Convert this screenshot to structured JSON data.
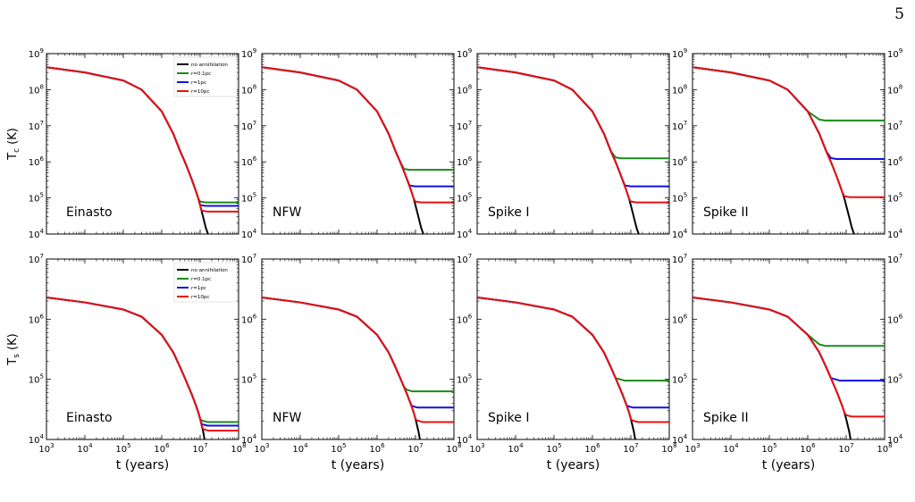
{
  "page_number": "5",
  "chart_data": {
    "type": "line",
    "x_scale": "log",
    "y_scale": "log",
    "xlim": [
      1000,
      100000000
    ],
    "x_ticks": [
      {
        "value": 1000,
        "base": "10",
        "exp": "3"
      },
      {
        "value": 10000,
        "base": "10",
        "exp": "4"
      },
      {
        "value": 100000,
        "base": "10",
        "exp": "5"
      },
      {
        "value": 1000000,
        "base": "10",
        "exp": "6"
      },
      {
        "value": 10000000,
        "base": "10",
        "exp": "7"
      },
      {
        "value": 100000000,
        "base": "10",
        "exp": "8"
      }
    ],
    "xlabel": "t (years)",
    "series_styles": [
      {
        "name": "no annihilation",
        "color": "#000000"
      },
      {
        "name": "r=0.1pc",
        "color": "#1a8a1a"
      },
      {
        "name": "r=1pc",
        "color": "#1010e0"
      },
      {
        "name": "r=10pc",
        "color": "#e81010"
      }
    ],
    "legend": {
      "placement": "top-right",
      "entries": [
        "no annihilation",
        "r=0.1pc",
        "r=1pc",
        "r=10pc"
      ]
    },
    "rows": [
      {
        "quantity": "Tc",
        "ylabel": "T",
        "ylabel_sub": "c",
        "ylabel_unit": " (K)",
        "ylim": [
          10000,
          1000000000
        ],
        "y_ticks": [
          {
            "value": 10000,
            "base": "10",
            "exp": "4"
          },
          {
            "value": 100000,
            "base": "10",
            "exp": "5"
          },
          {
            "value": 1000000,
            "base": "10",
            "exp": "6"
          },
          {
            "value": 10000000,
            "base": "10",
            "exp": "7"
          },
          {
            "value": 100000000,
            "base": "10",
            "exp": "8"
          },
          {
            "value": 1000000000,
            "base": "10",
            "exp": "9"
          }
        ],
        "cooling_curve": [
          [
            1000,
            420000000
          ],
          [
            10000,
            300000000
          ],
          [
            100000,
            180000000
          ],
          [
            300000,
            100000000
          ],
          [
            1000000,
            25000000
          ],
          [
            2000000,
            6000000
          ],
          [
            3000000,
            2000000
          ],
          [
            4000000,
            1000000
          ],
          [
            5000000,
            550000
          ],
          [
            6000000,
            330000
          ],
          [
            7000000,
            210000
          ],
          [
            8000000,
            140000
          ],
          [
            9000000,
            95000
          ],
          [
            10000000,
            62000
          ],
          [
            11000000,
            42000
          ],
          [
            12000000,
            29000
          ],
          [
            14000000,
            15000
          ],
          [
            16000000,
            10000
          ]
        ],
        "panels": [
          {
            "label": "Einasto",
            "show_legend": true,
            "plateaus": [
              {
                "name": "r=0.1pc",
                "value": 75000
              },
              {
                "name": "r=1pc",
                "value": 60000
              },
              {
                "name": "r=10pc",
                "value": 42000
              }
            ],
            "nofit_end": 16000000
          },
          {
            "label": "NFW",
            "show_legend": false,
            "plateaus": [
              {
                "name": "r=0.1pc",
                "value": 600000
              },
              {
                "name": "r=1pc",
                "value": 210000
              },
              {
                "name": "r=10pc",
                "value": 75000
              }
            ],
            "nofit_end": 16000000
          },
          {
            "label": "Spike I",
            "show_legend": false,
            "plateaus": [
              {
                "name": "r=0.1pc",
                "value": 1250000
              },
              {
                "name": "r=1pc",
                "value": 210000
              },
              {
                "name": "r=10pc",
                "value": 75000
              }
            ],
            "nofit_end": 16000000
          },
          {
            "label": "Spike II",
            "show_legend": false,
            "plateaus": [
              {
                "name": "r=0.1pc",
                "value": 14000000
              },
              {
                "name": "r=1pc",
                "value": 1200000
              },
              {
                "name": "r=10pc",
                "value": 105000
              }
            ],
            "nofit_end": 16000000
          }
        ]
      },
      {
        "quantity": "Ts",
        "ylabel": "T",
        "ylabel_sub": "s",
        "ylabel_unit": " (K)",
        "ylim": [
          10000,
          10000000
        ],
        "y_ticks": [
          {
            "value": 10000,
            "base": "10",
            "exp": "4"
          },
          {
            "value": 100000,
            "base": "10",
            "exp": "5"
          },
          {
            "value": 1000000,
            "base": "10",
            "exp": "6"
          },
          {
            "value": 10000000,
            "base": "10",
            "exp": "7"
          }
        ],
        "cooling_curve": [
          [
            1000,
            2300000
          ],
          [
            10000,
            1900000
          ],
          [
            100000,
            1450000
          ],
          [
            300000,
            1100000
          ],
          [
            1000000,
            550000
          ],
          [
            2000000,
            280000
          ],
          [
            3000000,
            160000
          ],
          [
            4000000,
            105000
          ],
          [
            5000000,
            75000
          ],
          [
            6000000,
            57000
          ],
          [
            7000000,
            44000
          ],
          [
            8000000,
            35000
          ],
          [
            9000000,
            28000
          ],
          [
            10000000,
            22000
          ],
          [
            11000000,
            17000
          ],
          [
            12000000,
            13500
          ],
          [
            13000000,
            10000
          ]
        ],
        "panels": [
          {
            "label": "Einasto",
            "show_legend": true,
            "plateaus": [
              {
                "name": "r=0.1pc",
                "value": 19500
              },
              {
                "name": "r=1pc",
                "value": 17000
              },
              {
                "name": "r=10pc",
                "value": 14000
              }
            ],
            "nofit_end": 13000000
          },
          {
            "label": "NFW",
            "show_legend": false,
            "plateaus": [
              {
                "name": "r=0.1pc",
                "value": 63000
              },
              {
                "name": "r=1pc",
                "value": 34000
              },
              {
                "name": "r=10pc",
                "value": 19500
              }
            ],
            "nofit_end": 13000000
          },
          {
            "label": "Spike I",
            "show_legend": false,
            "plateaus": [
              {
                "name": "r=0.1pc",
                "value": 95000
              },
              {
                "name": "r=1pc",
                "value": 34000
              },
              {
                "name": "r=10pc",
                "value": 19500
              }
            ],
            "nofit_end": 13000000
          },
          {
            "label": "Spike II",
            "show_legend": false,
            "plateaus": [
              {
                "name": "r=0.1pc",
                "value": 360000
              },
              {
                "name": "r=1pc",
                "value": 95000
              },
              {
                "name": "r=10pc",
                "value": 24000
              }
            ],
            "nofit_end": 13000000
          }
        ]
      }
    ]
  }
}
